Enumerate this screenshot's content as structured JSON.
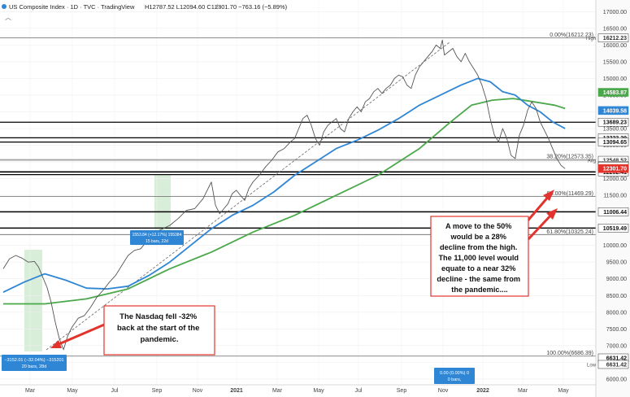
{
  "header": {
    "title": "US Composite Index · 1D · TVC · TradingView",
    "ohlc": "H12787.52 L12094.60 C12301.70 −763.16 (−5.89%)"
  },
  "chart_data": {
    "type": "line",
    "title": "US Composite Index",
    "ylim": [
      5900,
      17300
    ],
    "y_ticks": [
      6000,
      6500,
      7000,
      7500,
      8000,
      8500,
      9000,
      9500,
      10000,
      10500,
      11000,
      11500,
      12000,
      12500,
      13000,
      13500,
      14000,
      14500,
      15000,
      15500,
      16000,
      16500,
      17000
    ],
    "x_ticks": [
      "Mar",
      "May",
      "Jul",
      "Sep",
      "Nov",
      "2021",
      "Mar",
      "May",
      "Jul",
      "Sep",
      "Nov",
      "2022",
      "Mar",
      "May"
    ],
    "series": [
      {
        "name": "",
        "color": "#555555",
        "values": [
          [
            0,
            9300
          ],
          [
            3,
            9600
          ],
          [
            6,
            9700
          ],
          [
            9,
            9620
          ],
          [
            12,
            9500
          ],
          [
            15,
            9520
          ],
          [
            17,
            9350
          ],
          [
            19,
            9050
          ],
          [
            21,
            8750
          ],
          [
            23,
            8300
          ],
          [
            25,
            7700
          ],
          [
            27,
            7200
          ],
          [
            29,
            6880
          ],
          [
            31,
            7300
          ],
          [
            33,
            7550
          ],
          [
            36,
            7820
          ],
          [
            39,
            7900
          ],
          [
            42,
            8150
          ],
          [
            45,
            8450
          ],
          [
            48,
            8660
          ],
          [
            51,
            8900
          ],
          [
            54,
            9100
          ],
          [
            57,
            9400
          ],
          [
            60,
            9700
          ],
          [
            63,
            9850
          ],
          [
            66,
            9900
          ],
          [
            70,
            10200
          ],
          [
            73,
            10400
          ],
          [
            76,
            10480
          ],
          [
            80,
            10600
          ],
          [
            84,
            10800
          ],
          [
            88,
            11050
          ],
          [
            92,
            11100
          ],
          [
            96,
            11400
          ],
          [
            100,
            11900
          ],
          [
            102,
            11200
          ],
          [
            104,
            10950
          ],
          [
            106,
            11100
          ],
          [
            108,
            11250
          ],
          [
            110,
            11550
          ],
          [
            112,
            11650
          ],
          [
            114,
            11500
          ],
          [
            116,
            11350
          ],
          [
            118,
            11700
          ],
          [
            120,
            11900
          ],
          [
            123,
            12100
          ],
          [
            126,
            12350
          ],
          [
            129,
            12550
          ],
          [
            132,
            12800
          ],
          [
            135,
            12900
          ],
          [
            138,
            13100
          ],
          [
            140,
            13200
          ],
          [
            142,
            13500
          ],
          [
            144,
            13800
          ],
          [
            146,
            13900
          ],
          [
            148,
            13600
          ],
          [
            150,
            13200
          ],
          [
            152,
            13000
          ],
          [
            154,
            13400
          ],
          [
            156,
            13600
          ],
          [
            158,
            13700
          ],
          [
            160,
            13800
          ],
          [
            162,
            13500
          ],
          [
            164,
            13400
          ],
          [
            166,
            13800
          ],
          [
            168,
            14000
          ],
          [
            170,
            14150
          ],
          [
            172,
            14000
          ],
          [
            174,
            14300
          ],
          [
            176,
            14400
          ],
          [
            178,
            14600
          ],
          [
            180,
            14700
          ],
          [
            182,
            14550
          ],
          [
            184,
            14700
          ],
          [
            186,
            14800
          ],
          [
            188,
            15000
          ],
          [
            190,
            15100
          ],
          [
            192,
            15050
          ],
          [
            194,
            14800
          ],
          [
            196,
            14700
          ],
          [
            198,
            15100
          ],
          [
            200,
            15350
          ],
          [
            202,
            15500
          ],
          [
            204,
            15650
          ],
          [
            206,
            15800
          ],
          [
            208,
            16000
          ],
          [
            210,
            15900
          ],
          [
            211,
            16150
          ],
          [
            212,
            15700
          ],
          [
            214,
            15800
          ],
          [
            216,
            15900
          ],
          [
            218,
            15650
          ],
          [
            220,
            15500
          ],
          [
            222,
            15750
          ],
          [
            224,
            15500
          ],
          [
            226,
            15300
          ],
          [
            228,
            15100
          ],
          [
            230,
            14800
          ],
          [
            232,
            14400
          ],
          [
            234,
            13800
          ],
          [
            236,
            13300
          ],
          [
            238,
            13100
          ],
          [
            240,
            13500
          ],
          [
            242,
            13200
          ],
          [
            244,
            12700
          ],
          [
            246,
            12600
          ],
          [
            248,
            13300
          ],
          [
            250,
            13600
          ],
          [
            252,
            14050
          ],
          [
            254,
            14300
          ],
          [
            256,
            14100
          ],
          [
            258,
            13700
          ],
          [
            260,
            13450
          ],
          [
            262,
            13200
          ],
          [
            264,
            12900
          ],
          [
            266,
            12600
          ],
          [
            268,
            12400
          ],
          [
            270,
            12300
          ]
        ]
      },
      {
        "name": "",
        "color": "#2f86d4",
        "values": [
          [
            0,
            8600
          ],
          [
            10,
            8900
          ],
          [
            20,
            9150
          ],
          [
            30,
            8960
          ],
          [
            40,
            8720
          ],
          [
            50,
            8700
          ],
          [
            60,
            8780
          ],
          [
            70,
            9100
          ],
          [
            80,
            9500
          ],
          [
            90,
            10000
          ],
          [
            100,
            10500
          ],
          [
            110,
            10900
          ],
          [
            120,
            11200
          ],
          [
            130,
            11600
          ],
          [
            140,
            12100
          ],
          [
            150,
            12500
          ],
          [
            160,
            12900
          ],
          [
            170,
            13150
          ],
          [
            180,
            13450
          ],
          [
            190,
            13800
          ],
          [
            200,
            14200
          ],
          [
            210,
            14500
          ],
          [
            220,
            14800
          ],
          [
            228,
            15000
          ],
          [
            234,
            14900
          ],
          [
            240,
            14600
          ],
          [
            246,
            14500
          ],
          [
            252,
            14200
          ],
          [
            258,
            14000
          ],
          [
            264,
            13700
          ],
          [
            270,
            13500
          ]
        ]
      },
      {
        "name": "",
        "color": "#4aa84a",
        "values": [
          [
            0,
            8250
          ],
          [
            20,
            8250
          ],
          [
            40,
            8400
          ],
          [
            60,
            8700
          ],
          [
            80,
            9300
          ],
          [
            100,
            9800
          ],
          [
            120,
            10400
          ],
          [
            140,
            10900
          ],
          [
            160,
            11500
          ],
          [
            180,
            12100
          ],
          [
            200,
            12900
          ],
          [
            215,
            13700
          ],
          [
            225,
            14200
          ],
          [
            235,
            14350
          ],
          [
            245,
            14400
          ],
          [
            255,
            14300
          ],
          [
            265,
            14200
          ],
          [
            270,
            14100
          ]
        ]
      }
    ],
    "price_labels": [
      {
        "value": 16212.23,
        "text": "16212.23",
        "bg": "#ffffff",
        "fg": "#333333"
      },
      {
        "value": 14583.87,
        "text": "14583.87",
        "bg": "#4aa84a",
        "fg": "#ffffff"
      },
      {
        "value": 14039.58,
        "text": "14039.58",
        "bg": "#2f86d4",
        "fg": "#ffffff"
      },
      {
        "value": 13689.23,
        "text": "13689.23",
        "bg": "#ffffff",
        "fg": "#111111"
      },
      {
        "value": 13223.29,
        "text": "13223.29",
        "bg": "#ffffff",
        "fg": "#111111"
      },
      {
        "value": 13094.65,
        "text": "13094.65",
        "bg": "#ffffff",
        "fg": "#111111"
      },
      {
        "value": 12548.52,
        "text": "12548.52",
        "bg": "#ffffff",
        "fg": "#333333"
      },
      {
        "value": 12397.05,
        "text": "12397.05",
        "bg": "#ffffff",
        "fg": "#111111"
      },
      {
        "value": 12367.02,
        "text": "12367.02",
        "bg": "#ffffff",
        "fg": "#111111"
      },
      {
        "value": 12202.41,
        "text": "12202.41",
        "bg": "#ffffff",
        "fg": "#111111"
      },
      {
        "value": 12301.7,
        "text": "12301.70",
        "bg": "#e2342c",
        "fg": "#ffffff"
      },
      {
        "value": 11006.44,
        "text": "11006.44",
        "bg": "#ffffff",
        "fg": "#111111"
      },
      {
        "value": 10519.49,
        "text": "10519.49",
        "bg": "#ffffff",
        "fg": "#111111"
      },
      {
        "value": 6631.42,
        "text": "6631.42",
        "bg": "#ffffff",
        "fg": "#111111"
      },
      {
        "value": 6631.42,
        "text": "6631.42",
        "bg": "#ffffff",
        "fg": "#333333",
        "offset": 1
      }
    ],
    "side_tags": [
      {
        "value": 16212.23,
        "text": "High"
      },
      {
        "value": 12548.52,
        "text": "Avg"
      },
      {
        "value": 6631.42,
        "text": "Low",
        "offset": 1
      }
    ],
    "levels": [
      {
        "value": 16212.23,
        "color": "#666666",
        "width": 0.8,
        "label": "0.00%(16212.23)"
      },
      {
        "value": 13689.23,
        "color": "#000000",
        "width": 1.2
      },
      {
        "value": 13223.29,
        "color": "#000000",
        "width": 1.2
      },
      {
        "value": 13094.65,
        "color": "#000000",
        "width": 1.2
      },
      {
        "value": 12548.52,
        "color": "#888888",
        "width": 0.6
      },
      {
        "value": 12573.35,
        "color": "#666666",
        "width": 0.6,
        "label": "38.20%(12573.35)"
      },
      {
        "value": 12202.41,
        "color": "#000000",
        "width": 1.6
      },
      {
        "value": 12120.0,
        "color": "#000000",
        "width": 1.2
      },
      {
        "value": 11469.29,
        "color": "#666666",
        "width": 0.8,
        "label": "50.00%(11469.29)"
      },
      {
        "value": 11006.44,
        "color": "#000000",
        "width": 1.4
      },
      {
        "value": 10519.49,
        "color": "#000000",
        "width": 1.4
      },
      {
        "value": 10325.24,
        "color": "#666666",
        "width": 0.8,
        "label": "61.80%(10325.24)"
      },
      {
        "value": 6686.39,
        "color": "#666666",
        "width": 0.8,
        "label": "100.00%(6686.39)"
      }
    ],
    "measure_boxes": [
      {
        "label": "−3152.01 (−32.04%) −315201",
        "sub": "20 bars, 28d"
      },
      {
        "label": "1553.84 (+12.17%) 155384",
        "sub": "15 bars, 22d"
      },
      {
        "label": "0.00 (0.00%) 0",
        "sub": "0 bars,"
      }
    ],
    "annotations": [
      {
        "id": "left",
        "text": [
          "The Nasdaq fell -32%",
          "back at the start of the",
          "pandemic."
        ]
      },
      {
        "id": "right",
        "text": [
          "A move to the 50%",
          "would be a 28%",
          "decline from the high.",
          "The 11,000 level would",
          "equate to a near 32%",
          "decline - the same from",
          "the pandemic...."
        ]
      }
    ]
  }
}
